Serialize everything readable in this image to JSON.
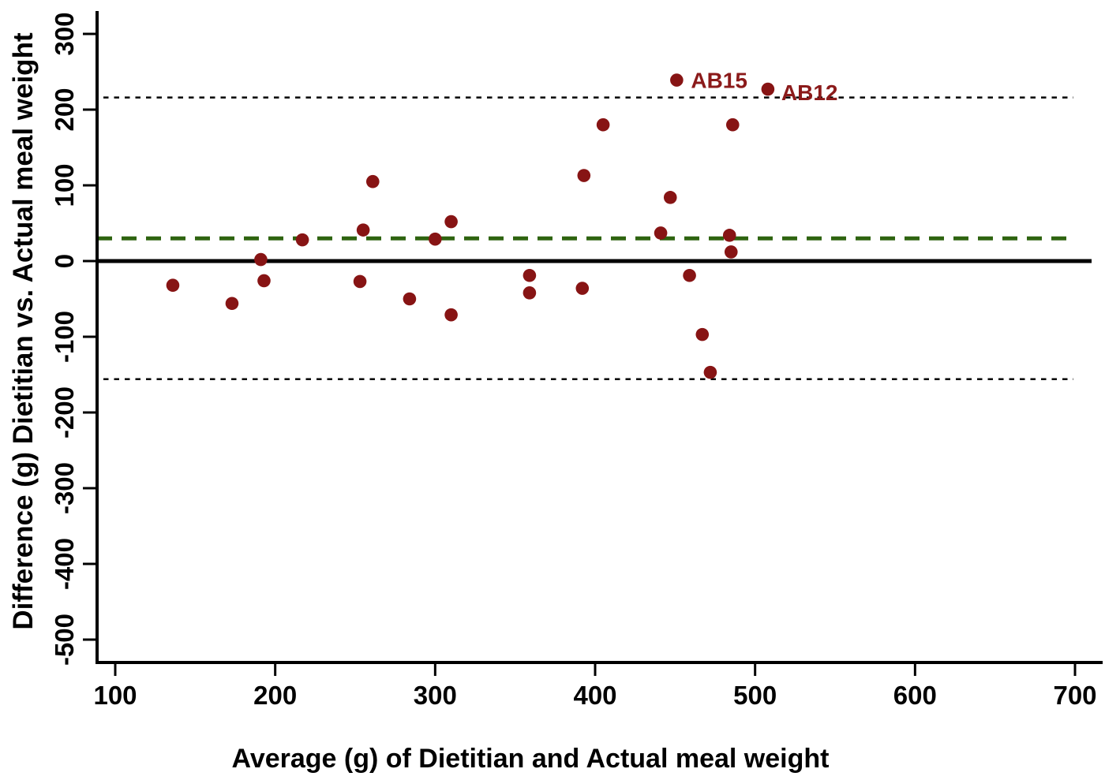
{
  "chart_data": {
    "type": "scatter",
    "title": "",
    "xlabel": "Average (g) of Dietitian and Actual meal weight",
    "ylabel": "Difference (g) Dietitian vs. Actual meal weight",
    "xlim": [
      100,
      700
    ],
    "ylim": [
      -500,
      300
    ],
    "x_ticks": [
      100,
      200,
      300,
      400,
      500,
      600,
      700
    ],
    "y_ticks": [
      300,
      200,
      100,
      0,
      -100,
      -200,
      -300,
      -400,
      -500
    ],
    "grid": false,
    "legend": "none",
    "reference_lines": [
      {
        "name": "zero-line",
        "value": 0,
        "style": "solid",
        "color": "#000000"
      },
      {
        "name": "mean-difference",
        "value": 30,
        "style": "dashed",
        "color": "#2f6410"
      },
      {
        "name": "upper-limit-of-agreement",
        "value": 216,
        "style": "dotted",
        "color": "#000000"
      },
      {
        "name": "lower-limit-of-agreement",
        "value": -156,
        "style": "dotted",
        "color": "#000000"
      }
    ],
    "point_color": "#871414",
    "annotation_color": "#8b1a1a",
    "points": [
      {
        "x": 136,
        "y": -32
      },
      {
        "x": 173,
        "y": -56
      },
      {
        "x": 191,
        "y": 2
      },
      {
        "x": 193,
        "y": -26
      },
      {
        "x": 217,
        "y": 28
      },
      {
        "x": 253,
        "y": -27
      },
      {
        "x": 255,
        "y": 41
      },
      {
        "x": 261,
        "y": 105
      },
      {
        "x": 284,
        "y": -50
      },
      {
        "x": 300,
        "y": 29
      },
      {
        "x": 310,
        "y": 52
      },
      {
        "x": 310,
        "y": -71
      },
      {
        "x": 359,
        "y": -19
      },
      {
        "x": 359,
        "y": -42
      },
      {
        "x": 392,
        "y": -36
      },
      {
        "x": 393,
        "y": 113
      },
      {
        "x": 405,
        "y": 180
      },
      {
        "x": 441,
        "y": 37
      },
      {
        "x": 447,
        "y": 84
      },
      {
        "x": 451,
        "y": 239,
        "label": "AB15"
      },
      {
        "x": 459,
        "y": -19
      },
      {
        "x": 467,
        "y": -97
      },
      {
        "x": 472,
        "y": -147
      },
      {
        "x": 484,
        "y": 34
      },
      {
        "x": 485,
        "y": 12
      },
      {
        "x": 486,
        "y": 180
      },
      {
        "x": 508,
        "y": 227,
        "label": "AB12"
      }
    ]
  }
}
